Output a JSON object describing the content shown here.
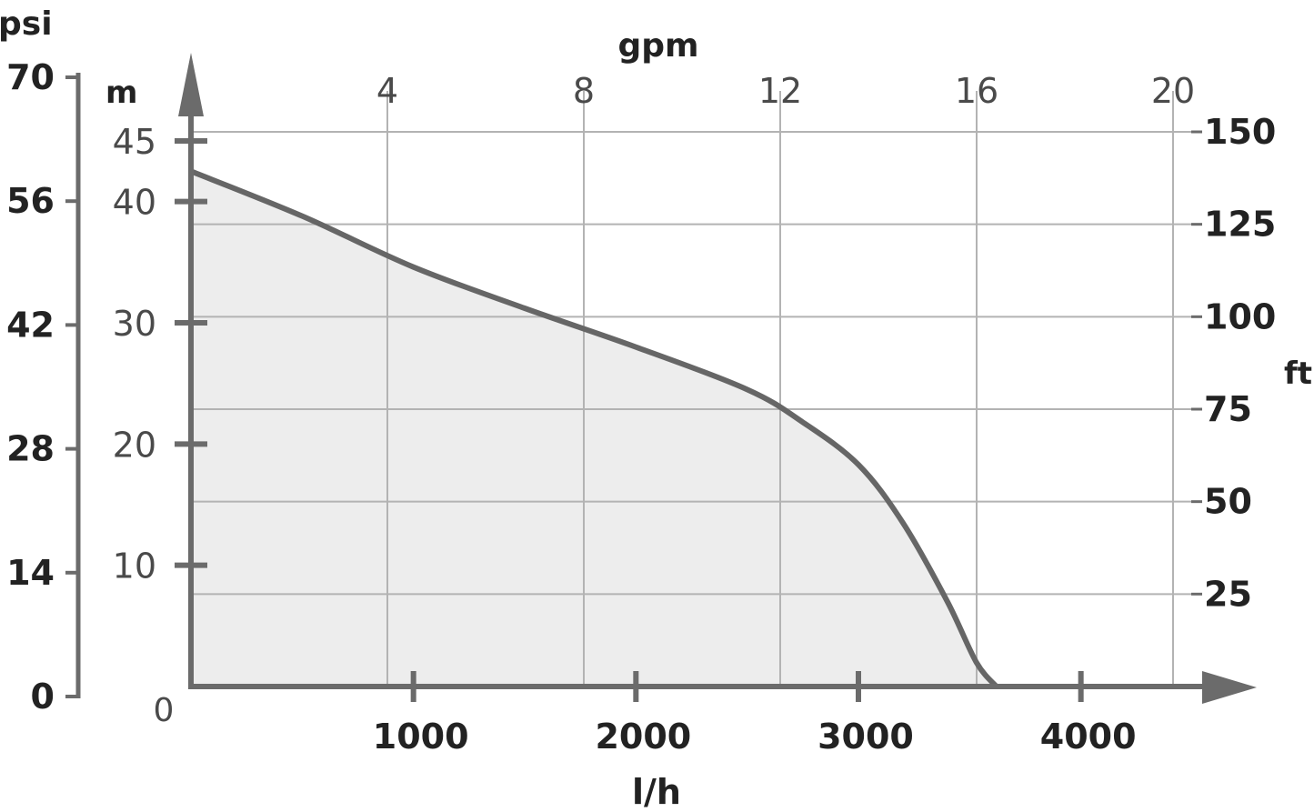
{
  "colors": {
    "axis": "#6b6b6b",
    "grid": "#b3b3b3",
    "curve": "#666666",
    "fill": "#ededed",
    "text_dark": "#222222",
    "text_light": "#4a4a4a"
  },
  "chart_data": {
    "type": "area",
    "series": [
      {
        "values_lph_m": [
          [
            0,
            42.5
          ],
          [
            500,
            38.8
          ],
          [
            1000,
            34.6
          ],
          [
            1500,
            31.2
          ],
          [
            2000,
            28.0
          ],
          [
            2500,
            24.5
          ],
          [
            2750,
            21.8
          ],
          [
            3000,
            18.3
          ],
          [
            3200,
            13.5
          ],
          [
            3400,
            7.0
          ],
          [
            3530,
            2.0
          ],
          [
            3620,
            0
          ]
        ]
      }
    ],
    "axes": {
      "bottom": {
        "label": "l/h",
        "ticks": [
          "1000",
          "2000",
          "3000",
          "4000"
        ],
        "tick_values": [
          1000,
          2000,
          3000,
          4000
        ],
        "range": [
          0,
          4400
        ]
      },
      "top": {
        "label": "gpm",
        "ticks": [
          "4",
          "8",
          "12",
          "16",
          "20"
        ],
        "tick_values": [
          4,
          8,
          12,
          16,
          20
        ]
      },
      "left_m": {
        "label": "m",
        "ticks": [
          "10",
          "20",
          "30",
          "40",
          "45"
        ],
        "tick_values": [
          10,
          20,
          30,
          40,
          45
        ],
        "range": [
          0,
          45
        ]
      },
      "left_psi": {
        "label": "psi",
        "ticks": [
          "0",
          "14",
          "28",
          "42",
          "56",
          "70"
        ],
        "tick_values": [
          0,
          14,
          28,
          42,
          56,
          70
        ]
      },
      "right_ft": {
        "label": "ft",
        "ticks": [
          "25",
          "50",
          "75",
          "100",
          "125",
          "150"
        ],
        "tick_values": [
          25,
          50,
          75,
          100,
          125,
          150
        ]
      },
      "origin_label": "0"
    },
    "grid": true
  }
}
